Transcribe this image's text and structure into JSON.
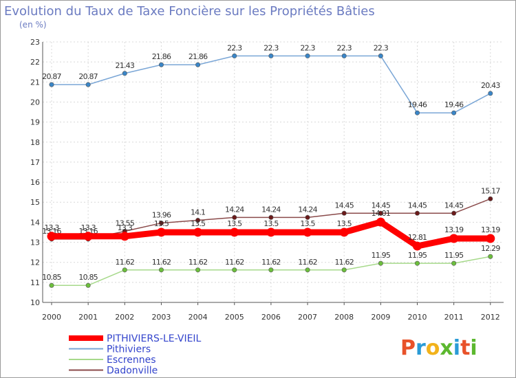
{
  "title": "Evolution du Taux de Taxe Foncière sur les Propriétés Bâties",
  "subtitle": "(en %)",
  "brand": {
    "text": "Proxiti",
    "colors": [
      "#e8522a",
      "#2a9bd6",
      "#f2b21b",
      "#5cb82f",
      "#2a9bd6",
      "#e8522a",
      "#5cb82f"
    ]
  },
  "chart_data": {
    "type": "line",
    "x": [
      "2000",
      "2001",
      "2002",
      "2003",
      "2004",
      "2005",
      "2006",
      "2007",
      "2008",
      "2009",
      "2010",
      "2011",
      "2012"
    ],
    "ylim": [
      10,
      23
    ],
    "yticks": [
      10,
      11,
      12,
      13,
      14,
      15,
      16,
      17,
      18,
      19,
      20,
      21,
      22,
      23
    ],
    "grid": true,
    "legend_position": "bottom-left",
    "series": [
      {
        "name": "Pithiviers",
        "color": "#7aa6d6",
        "marker": "#3a86c8",
        "width": 1.5,
        "values": [
          20.87,
          20.87,
          21.43,
          21.86,
          21.86,
          22.3,
          22.3,
          22.3,
          22.3,
          22.3,
          19.46,
          19.46,
          20.43
        ],
        "labels": [
          "20.87",
          "20.87",
          "21.43",
          "21.86",
          "21.86",
          "22.3",
          "22.3",
          "22.3",
          "22.3",
          "22.3",
          "19.46",
          "19.46",
          "20.43"
        ]
      },
      {
        "name": "Dadonville",
        "color": "#8a4a4a",
        "marker": "#6b1a1a",
        "width": 1.5,
        "values": [
          13.16,
          13.16,
          13.55,
          13.96,
          14.1,
          14.24,
          14.24,
          14.24,
          14.45,
          14.45,
          14.45,
          14.45,
          15.17
        ],
        "labels": [
          "13.16",
          "13.16",
          "13.55",
          "13.96",
          "14.1",
          "14.24",
          "14.24",
          "14.24",
          "14.45",
          "14.45",
          "14.45",
          "14.45",
          "15.17"
        ]
      },
      {
        "name": "Escrennes",
        "color": "#a6d98a",
        "marker": "#6cbf3c",
        "width": 1.5,
        "values": [
          10.85,
          10.85,
          11.62,
          11.62,
          11.62,
          11.62,
          11.62,
          11.62,
          11.62,
          11.95,
          11.95,
          11.95,
          12.29
        ],
        "labels": [
          "10.85",
          "10.85",
          "11.62",
          "11.62",
          "11.62",
          "11.62",
          "11.62",
          "11.62",
          "11.62",
          "11.95",
          "11.95",
          "11.95",
          "12.29"
        ]
      },
      {
        "name": "PITHIVIERS-LE-VIEIL",
        "color": "#ff0000",
        "marker": "#ff0000",
        "width": 9,
        "values": [
          13.3,
          13.3,
          13.3,
          13.5,
          13.5,
          13.5,
          13.5,
          13.5,
          13.5,
          14.01,
          12.81,
          13.19,
          13.19
        ],
        "labels": [
          "13.3",
          "13.3",
          "13.3",
          "13.5",
          "13.5",
          "13.5",
          "13.5",
          "13.5",
          "13.5",
          "14.01",
          "12.81",
          "13.19",
          "13.19"
        ]
      }
    ],
    "legend": [
      "PITHIVIERS-LE-VIEIL",
      "Pithiviers",
      "Escrennes",
      "Dadonville"
    ]
  }
}
